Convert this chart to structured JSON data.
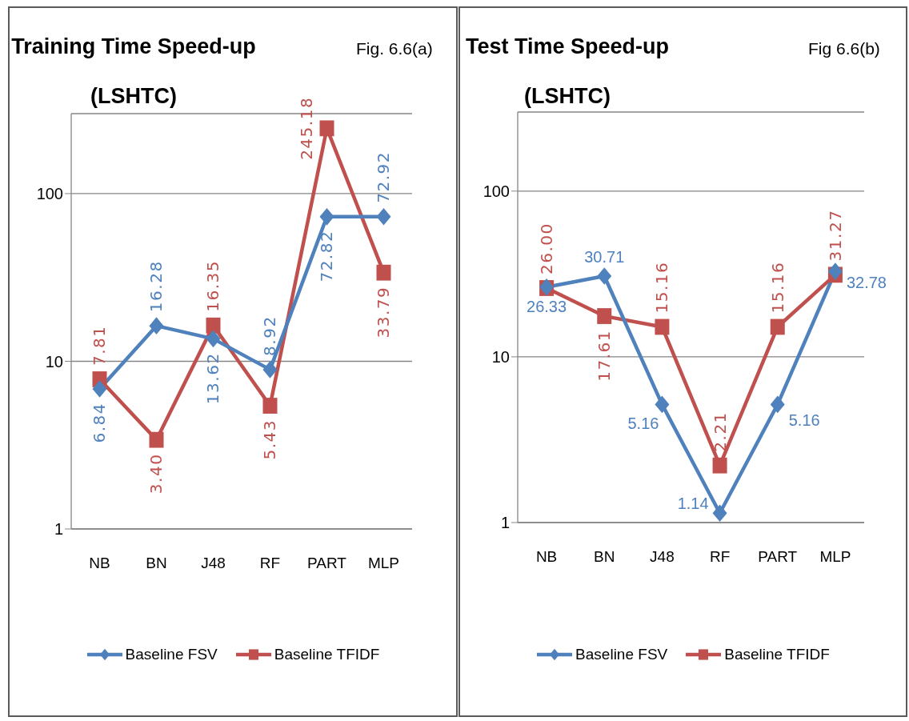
{
  "chart_data": [
    {
      "type": "line",
      "title": "Training Time Speed-up (LSHTC)",
      "annotations": [
        "Fig. 6.6(a)"
      ],
      "categories": [
        "NB",
        "BN",
        "J48",
        "RF",
        "PART",
        "MLP"
      ],
      "series": [
        {
          "name": "Baseline FSV",
          "color": "#4f81bd",
          "marker": "diamond",
          "values": [
            6.84,
            16.28,
            13.62,
            8.92,
            72.82,
            72.92
          ],
          "value_labels": [
            "6.84",
            "16.28",
            "13.62",
            "8.92",
            "72.82",
            "72.92"
          ]
        },
        {
          "name": "Baseline TFIDF",
          "color": "#c0504d",
          "marker": "square",
          "values": [
            7.81,
            3.4,
            16.35,
            5.43,
            245.18,
            33.79
          ],
          "value_labels": [
            "7.81",
            "3.40",
            "16.35",
            "5.43",
            "245.18",
            "33.79"
          ]
        }
      ],
      "log": true,
      "ylim": [
        1,
        300
      ],
      "yticks": [
        1,
        10,
        100
      ],
      "grid": "y",
      "legend": "bottom"
    },
    {
      "type": "line",
      "title": "Test Time Speed-up (LSHTC)",
      "annotations": [
        "Fig 6.6(b)"
      ],
      "categories": [
        "NB",
        "BN",
        "J48",
        "RF",
        "PART",
        "MLP"
      ],
      "series": [
        {
          "name": "Baseline FSV",
          "color": "#4f81bd",
          "marker": "diamond",
          "values": [
            26.33,
            30.71,
            5.16,
            1.14,
            5.16,
            32.78
          ],
          "value_labels": [
            "26.33",
            "30.71",
            "5.16",
            "1.14",
            "5.16",
            "32.78"
          ]
        },
        {
          "name": "Baseline TFIDF",
          "color": "#c0504d",
          "marker": "square",
          "values": [
            26.0,
            17.61,
            15.16,
            2.21,
            15.16,
            31.27
          ],
          "value_labels": [
            "26.00",
            "17.61",
            "15.16",
            "2.21",
            "15.16",
            "31.27"
          ]
        }
      ],
      "log": true,
      "ylim": [
        1,
        300
      ],
      "yticks": [
        1,
        10,
        100
      ],
      "grid": "y",
      "legend": "bottom"
    }
  ]
}
